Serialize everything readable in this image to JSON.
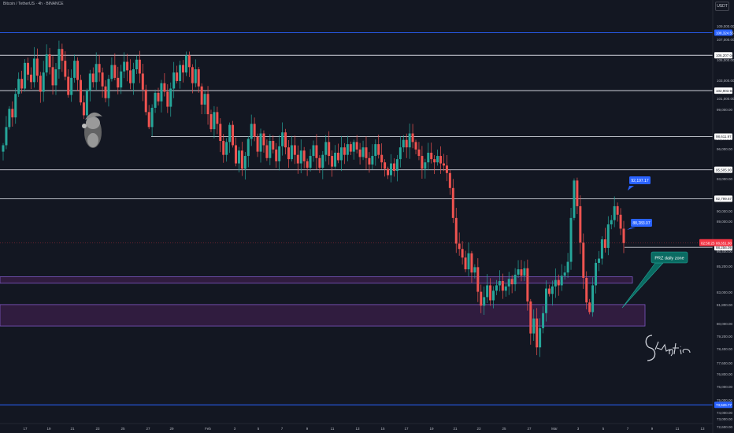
{
  "header": {
    "title": "Bitcoin / TetherUS · 4h · BINANCE"
  },
  "unit_button": "USDT",
  "colors": {
    "background": "#131722",
    "up": "#26a69a",
    "down": "#ef5350",
    "blue_line": "#2962ff",
    "white_line": "#d1d4dc",
    "zone_fill": "#3b1f4a",
    "zone_border": "#7e57c2",
    "callout_teal": "#0a6b62",
    "callout_blue": "#2962ff",
    "current_price": "#f23645"
  },
  "chart_data": {
    "type": "candlestick",
    "title": "Bitcoin / TetherUS · 4h · BINANCE",
    "y_range": [
      72000,
      110200
    ],
    "y_tick_labels": [
      "109,000.00",
      "107,000.00",
      "105,000.00",
      "103,000.00",
      "101,000.00",
      "99,000.00",
      "97,000.00",
      "96,000.00",
      "94,000.00",
      "93,000.00",
      "91,000.00",
      "90,000.00",
      "89,000.00",
      "86,400.00",
      "85,200.00",
      "83,000.00",
      "81,800.00",
      "80,000.00",
      "79,200.00",
      "78,400.00",
      "77,600.00",
      "76,800.00",
      "76,000.00",
      "75,000.00",
      "74,000.00",
      "73,000.00",
      "72,600.00"
    ],
    "x_labels": [
      "17",
      "19",
      "21",
      "23",
      "25",
      "27",
      "29",
      "Feb",
      "3",
      "5",
      "7",
      "9",
      "11",
      "13",
      "15",
      "17",
      "19",
      "21",
      "23",
      "25",
      "27",
      "Mar",
      "3",
      "5",
      "7",
      "9",
      "11",
      "13"
    ],
    "horizontal_levels": [
      {
        "price": 108324.55,
        "label": "108,324.55",
        "style": "blue"
      },
      {
        "price": 106207.04,
        "label": "106,207.04",
        "style": "white"
      },
      {
        "price": 102903.94,
        "label": "102,903.94",
        "style": "white"
      },
      {
        "price": 98611.97,
        "label": "98,611.97",
        "style": "white"
      },
      {
        "price": 95505.9,
        "label": "95,505.90",
        "style": "white"
      },
      {
        "price": 92799.67,
        "label": "92,799.67",
        "style": "white"
      },
      {
        "price": 88256.09,
        "label": "88,256.09",
        "style": "white"
      },
      {
        "price": 73526.77,
        "label": "73,526.77",
        "style": "blue"
      }
    ],
    "current_price": {
      "price": 88651.8,
      "label": "88,651.80",
      "time_label": "02:58:25"
    },
    "zones": [
      {
        "top": 85500,
        "bottom": 84900,
        "label": ""
      },
      {
        "top": 82900,
        "bottom": 80900,
        "label": "PRZ daily zone"
      }
    ],
    "callouts": [
      {
        "text": "92,197.17",
        "price": 92197.17
      },
      {
        "text": "88,283.07",
        "price": 88283.07
      },
      {
        "text": "PRZ daily zone",
        "price": 84900
      }
    ],
    "signature": "Skeptic",
    "closes": [
      97800,
      99500,
      101200,
      100400,
      102600,
      104000,
      103100,
      105500,
      104400,
      103700,
      105900,
      104300,
      102800,
      104600,
      106300,
      105100,
      103400,
      104900,
      106800,
      105700,
      104200,
      102500,
      104100,
      105700,
      103900,
      101800,
      100600,
      102900,
      104500,
      103700,
      105400,
      104600,
      103300,
      102200,
      104000,
      105300,
      104100,
      103200,
      104700,
      105600,
      104800,
      103600,
      104900,
      105800,
      104500,
      103000,
      100900,
      99500,
      101300,
      102700,
      101900,
      103600,
      102800,
      101400,
      103100,
      104600,
      103800,
      105300,
      104600,
      106200,
      105100,
      103600,
      104900,
      103300,
      101600,
      102600,
      100700,
      99300,
      100900,
      99800,
      98200,
      96900,
      98100,
      99700,
      97800,
      96100,
      97300,
      95600,
      96800,
      98400,
      99800,
      98600,
      97200,
      98900,
      97800,
      96600,
      98200,
      97400,
      96300,
      97700,
      99000,
      97600,
      96500,
      97800,
      96900,
      96100,
      97300,
      96300,
      95700,
      96800,
      97800,
      96600,
      95700,
      96900,
      98100,
      96800,
      95800,
      97100,
      96400,
      97600,
      96900,
      97900,
      97200,
      98100,
      97400,
      96700,
      97600,
      96600,
      96000,
      96800,
      97900,
      96900,
      96200,
      95600,
      95000,
      96100,
      95400,
      96500,
      97600,
      98300,
      97600,
      98900,
      98100,
      97400,
      96800,
      95600,
      96200,
      97100,
      96500,
      96200,
      96800,
      96100,
      95900,
      95200,
      93800,
      91000,
      88600,
      88100,
      87300,
      86200,
      87700,
      85900,
      86400,
      84100,
      82800,
      83600,
      84700,
      83300,
      84200,
      84700,
      85100,
      84200,
      84600,
      85300,
      84800,
      85700,
      86200,
      85600,
      86300,
      83200,
      80200,
      81600,
      78900,
      80700,
      82100,
      84400,
      83900,
      84600,
      85200,
      84700,
      85600,
      85900,
      86900,
      91000,
      94500,
      92100,
      88700,
      85400,
      83100,
      82200,
      84700,
      86800,
      87200,
      89000,
      88200,
      90400,
      90800,
      92100,
      91300,
      90000,
      88650
    ]
  }
}
